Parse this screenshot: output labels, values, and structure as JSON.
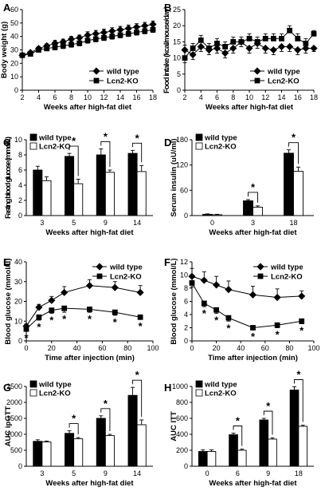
{
  "chart_data": [
    {
      "panel": "A",
      "type": "line",
      "x": [
        2,
        3,
        4,
        5,
        6,
        7,
        8,
        9,
        10,
        11,
        12,
        13,
        14,
        15,
        16,
        17,
        18
      ],
      "series": [
        {
          "name": "wild type",
          "marker": "diamond",
          "values": [
            26,
            28,
            31,
            33,
            35,
            36,
            38,
            39,
            41,
            42,
            43,
            44,
            45,
            46,
            47,
            48,
            49
          ],
          "err": [
            1,
            1,
            1.5,
            1.5,
            2,
            2,
            2,
            2,
            2.5,
            2.5,
            2.5,
            2.5,
            2.5,
            2.5,
            2.5,
            2.5,
            2.5
          ]
        },
        {
          "name": "Lcn2-KO",
          "marker": "square",
          "values": [
            26,
            27,
            30,
            31,
            32,
            33,
            34,
            35,
            37,
            38,
            39,
            40,
            41,
            42,
            43,
            44,
            45
          ],
          "err": [
            1,
            1,
            1.5,
            1.5,
            2,
            2,
            2,
            2,
            2,
            2,
            2,
            2,
            2,
            2,
            2,
            2,
            2
          ]
        }
      ],
      "xlabel": "Weeks after high-fat diet",
      "ylabel": "Body weight (g)",
      "xticks": [
        2,
        4,
        6,
        8,
        10,
        12,
        14,
        16,
        18
      ],
      "yticks": [
        0,
        10,
        20,
        30,
        40,
        50,
        60
      ],
      "xlim": [
        2,
        18
      ],
      "ylim": [
        0,
        60
      ],
      "legend": "bottom-right"
    },
    {
      "panel": "B",
      "type": "line",
      "x": [
        2,
        3,
        4,
        5,
        6,
        7,
        8,
        9,
        10,
        11,
        12,
        13,
        14,
        15,
        16,
        17,
        18
      ],
      "series": [
        {
          "name": "wild type",
          "marker": "diamond",
          "values": [
            12.5,
            11,
            13.5,
            12.5,
            13,
            11.5,
            13,
            15,
            13,
            14.5,
            13,
            12.5,
            13.5,
            13.5,
            12.5,
            13,
            13
          ],
          "err": [
            1.5,
            1.5,
            1.5,
            1.5,
            1.5,
            1.5,
            1.5,
            1.5,
            1.5,
            1.5,
            1.5,
            1.5,
            1.5,
            1.5,
            1.5,
            1.5,
            1
          ]
        },
        {
          "name": "Lcn2-KO",
          "marker": "square",
          "values": [
            10,
            13,
            15.5,
            13,
            14.5,
            13.5,
            15,
            15,
            16,
            15,
            16,
            16,
            16,
            18.5,
            16,
            14.5,
            17.5
          ],
          "err": [
            1.5,
            1.5,
            1.5,
            1.5,
            1.5,
            1.5,
            1.5,
            1.5,
            1.5,
            1.5,
            1.5,
            1.5,
            1.5,
            1.5,
            1.5,
            1.5,
            1
          ]
        }
      ],
      "xlabel": "Weeks after high-fat diet",
      "ylabel": "Food intake (kcal/mouse/day)",
      "xticks": [
        2,
        4,
        6,
        8,
        10,
        12,
        14,
        16,
        18
      ],
      "yticks": [
        0,
        5,
        10,
        15,
        20,
        25
      ],
      "xlim": [
        2,
        18
      ],
      "ylim": [
        0,
        25
      ],
      "legend": "bottom-right"
    },
    {
      "panel": "C",
      "type": "bar",
      "categories": [
        "3",
        "5",
        "9",
        "14"
      ],
      "series": [
        {
          "name": "wild type",
          "fill": "#000000",
          "values": [
            6.0,
            7.8,
            8.0,
            8.2
          ],
          "err": [
            0.5,
            0.4,
            0.8,
            0.4
          ]
        },
        {
          "name": "Lcn2-KO",
          "fill": "#ffffff",
          "values": [
            4.6,
            4.2,
            5.7,
            5.8
          ],
          "err": [
            0.5,
            0.6,
            0.3,
            0.8
          ]
        }
      ],
      "significance": [
        {
          "category": 1,
          "label": "*"
        },
        {
          "category": 2,
          "label": "*"
        },
        {
          "category": 3,
          "label": "*"
        }
      ],
      "xlabel": "Weeks after high-fat diet",
      "ylabel": "Fasting blood glucose (mmol/L)",
      "yticks": [
        0,
        2,
        4,
        6,
        8,
        10
      ],
      "ylim": [
        0,
        10
      ],
      "legend": "top-left"
    },
    {
      "panel": "D",
      "type": "bar",
      "categories": [
        "0",
        "3",
        "18"
      ],
      "series": [
        {
          "name": "wild type",
          "fill": "#000000",
          "values": [
            3,
            35,
            148
          ],
          "err": [
            1,
            3,
            8
          ]
        },
        {
          "name": "Lcn2-KO",
          "fill": "#ffffff",
          "values": [
            2,
            20,
            105
          ],
          "err": [
            1,
            3,
            10
          ]
        }
      ],
      "significance": [
        {
          "category": 1,
          "label": "*"
        },
        {
          "category": 2,
          "label": "*"
        }
      ],
      "xlabel": "Weeks after high-fat diet",
      "ylabel": "Serum insulin (uU/ml)",
      "yticks": [
        0,
        60,
        120,
        180
      ],
      "ylim": [
        0,
        180
      ],
      "legend": "top-left"
    },
    {
      "panel": "E",
      "type": "line",
      "x": [
        0,
        10,
        20,
        30,
        50,
        70,
        90
      ],
      "series": [
        {
          "name": "wild type",
          "marker": "diamond",
          "values": [
            7.5,
            17,
            20.5,
            24.5,
            28,
            27,
            24.5
          ],
          "err": [
            1,
            1.5,
            2,
            3,
            3,
            3,
            3.5
          ]
        },
        {
          "name": "Lcn2-KO",
          "marker": "square",
          "values": [
            6,
            12,
            15.5,
            16.5,
            16,
            14.5,
            12
          ],
          "err": [
            1,
            1.5,
            1.5,
            2,
            1.5,
            1.5,
            1
          ]
        }
      ],
      "significance": [
        {
          "x": 0,
          "label": "*"
        },
        {
          "x": 10,
          "label": "*"
        },
        {
          "x": 20,
          "label": "*"
        },
        {
          "x": 30,
          "label": "*"
        },
        {
          "x": 50,
          "label": "*"
        },
        {
          "x": 70,
          "label": "*"
        },
        {
          "x": 90,
          "label": "*"
        }
      ],
      "xlabel": "Time after injection (min)",
      "ylabel": "Blood glucose (mmol/L)",
      "xticks": [
        0,
        20,
        40,
        60,
        80,
        100
      ],
      "yticks": [
        0,
        10,
        20,
        30,
        40
      ],
      "xlim": [
        0,
        100
      ],
      "ylim": [
        0,
        40
      ],
      "legend": "top-right"
    },
    {
      "panel": "F",
      "type": "line",
      "x": [
        0,
        10,
        20,
        30,
        50,
        70,
        90
      ],
      "series": [
        {
          "name": "wild type",
          "marker": "diamond",
          "values": [
            9.8,
            9.2,
            8.5,
            7.8,
            7.0,
            6.6,
            6.8
          ],
          "err": [
            1.2,
            1.3,
            1.3,
            1.3,
            1.3,
            1.3,
            0.8
          ]
        },
        {
          "name": "Lcn2-KO",
          "marker": "square",
          "values": [
            8.8,
            5.7,
            4.7,
            3.5,
            2.0,
            2.4,
            3.0
          ],
          "err": [
            0.6,
            0.5,
            0.5,
            0.5,
            0.3,
            0.4,
            0.4
          ]
        }
      ],
      "significance": [
        {
          "x": 10,
          "label": "*"
        },
        {
          "x": 20,
          "label": "*"
        },
        {
          "x": 30,
          "label": "*"
        },
        {
          "x": 50,
          "label": "*"
        },
        {
          "x": 70,
          "label": "*"
        },
        {
          "x": 90,
          "label": "*"
        }
      ],
      "xlabel": "Time after injection (min)",
      "ylabel": "Blood glucose (mmol/L)",
      "xticks": [
        0,
        20,
        40,
        60,
        80,
        100
      ],
      "yticks": [
        0,
        2,
        4,
        6,
        8,
        10,
        12
      ],
      "xlim": [
        0,
        100
      ],
      "ylim": [
        0,
        12
      ],
      "legend": "top-right"
    },
    {
      "panel": "G",
      "type": "bar",
      "categories": [
        "3",
        "5",
        "9",
        "14"
      ],
      "series": [
        {
          "name": "wild type",
          "fill": "#000000",
          "values": [
            780,
            1030,
            1500,
            2220
          ],
          "err": [
            50,
            80,
            80,
            250
          ]
        },
        {
          "name": "Lcn2-KO",
          "fill": "#ffffff",
          "values": [
            760,
            860,
            960,
            1300
          ],
          "err": [
            30,
            40,
            40,
            150
          ]
        }
      ],
      "significance": [
        {
          "category": 1,
          "label": "*"
        },
        {
          "category": 2,
          "label": "*"
        },
        {
          "category": 3,
          "label": "*"
        }
      ],
      "xlabel": "Weeks after high-fat diet",
      "ylabel": "AUC ipGTT",
      "yticks": [
        0,
        500,
        1000,
        1500,
        2000,
        2500
      ],
      "ylim": [
        0,
        2500
      ],
      "legend": "top-left"
    },
    {
      "panel": "H",
      "type": "bar",
      "categories": [
        "0",
        "6",
        "9",
        "18"
      ],
      "series": [
        {
          "name": "wild type",
          "fill": "#000000",
          "values": [
            185,
            395,
            580,
            955
          ],
          "err": [
            20,
            20,
            20,
            40
          ]
        },
        {
          "name": "Lcn2-KO",
          "fill": "#ffffff",
          "values": [
            185,
            200,
            340,
            500
          ],
          "err": [
            20,
            15,
            15,
            15
          ]
        }
      ],
      "significance": [
        {
          "category": 1,
          "label": "*"
        },
        {
          "category": 2,
          "label": "*"
        },
        {
          "category": 3,
          "label": "*"
        }
      ],
      "xlabel": "Weeks after high-fat diet",
      "ylabel": "AUC ITT",
      "yticks": [
        0,
        200,
        400,
        600,
        800,
        1000
      ],
      "ylim": [
        0,
        1000
      ],
      "legend": "top-left"
    }
  ]
}
